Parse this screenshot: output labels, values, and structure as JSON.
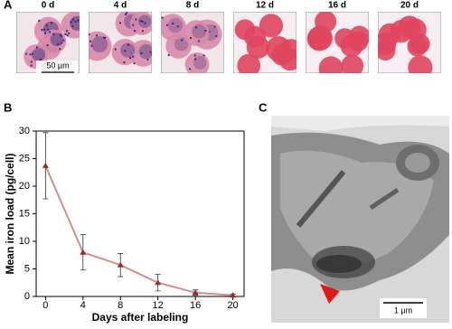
{
  "panel_labels": [
    "A",
    "B",
    "C"
  ],
  "micrographs": [
    "0 d",
    "4 d",
    "8 d",
    "12 d",
    "16 d",
    "20 d"
  ],
  "scale_bar_a": "50 µm",
  "scale_bar_c": "1 µm",
  "chart_data": {
    "type": "line",
    "x_label": "Days after labeling",
    "y_label": "Mean iron load (pg/cell)",
    "x": [
      0,
      4,
      8,
      12,
      16,
      20
    ],
    "series": [
      {
        "color": "#d09090",
        "marker_color": "#9a2a2a",
        "values": [
          23.7,
          8.0,
          5.7,
          2.5,
          0.7,
          0.2
        ],
        "errors": [
          6.0,
          3.2,
          2.1,
          1.5,
          0.5,
          0.2
        ]
      }
    ],
    "xlim": [
      -1,
      21.2
    ],
    "ylim": [
      0,
      30
    ],
    "xticks": [
      0,
      4,
      8,
      12,
      16,
      20
    ],
    "yticks": [
      0,
      5,
      10,
      15,
      20,
      25,
      30
    ]
  }
}
